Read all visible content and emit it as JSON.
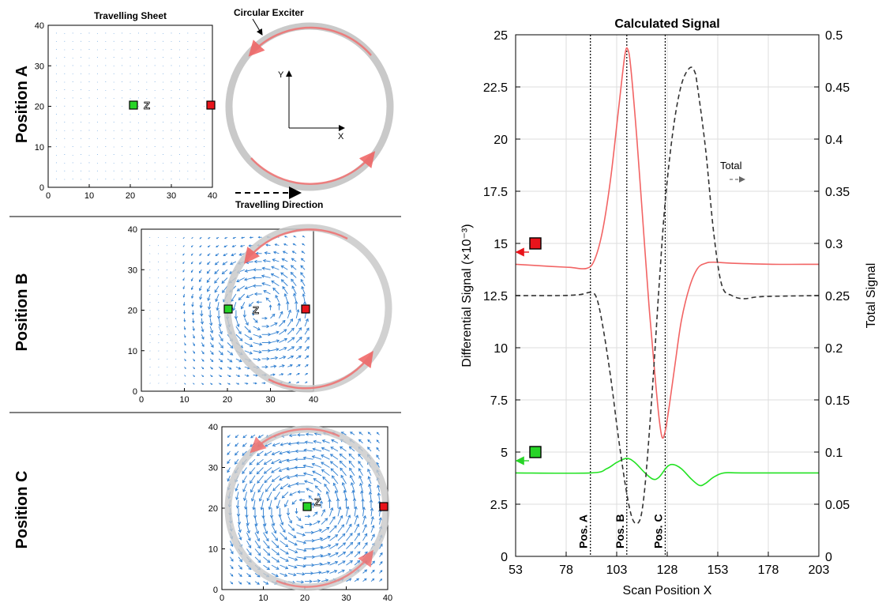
{
  "left_panels": {
    "position_a": {
      "row_label": "Position A",
      "title": "Travelling Sheet",
      "exciter_label": "Circular Exciter",
      "axis_y_label": "Y",
      "axis_x_label": "X",
      "direction_label": "Travelling Direction",
      "z_label": "Z",
      "ticks_x": [
        "0",
        "10",
        "20",
        "30",
        "40"
      ],
      "ticks_y": [
        "0",
        "10",
        "20",
        "30",
        "40"
      ]
    },
    "position_b": {
      "row_label": "Position B",
      "z_label": "Z",
      "ticks_x": [
        "0",
        "10",
        "20",
        "30",
        "40"
      ],
      "ticks_y": [
        "0",
        "10",
        "20",
        "30",
        "40"
      ]
    },
    "position_c": {
      "row_label": "Position C",
      "z_label": "Z",
      "ticks_x": [
        "0",
        "10",
        "20",
        "30",
        "40"
      ],
      "ticks_y": [
        "0",
        "10",
        "20",
        "30",
        "40"
      ]
    },
    "colors": {
      "quiver": "#2f7fd1",
      "red_sensor": "#e8141b",
      "green_sensor": "#27d427",
      "ring": "#c9c9c9",
      "ring_arrow": "#f08080"
    }
  },
  "chart_data": {
    "type": "line",
    "title": "Calculated Signal",
    "xlabel": "Scan Position X",
    "ylabel_left": "Differential Signal (×10⁻³)",
    "ylabel_right": "Total Signal",
    "xlim": [
      53,
      203
    ],
    "ylim_left": [
      0,
      25
    ],
    "ylim_right": [
      0,
      0.5
    ],
    "x_ticks": [
      "53",
      "78",
      "103",
      "128",
      "153",
      "178",
      "203"
    ],
    "y_ticks_left": [
      "0",
      "2.5",
      "5",
      "7.5",
      "10",
      "12.5",
      "15",
      "17.5",
      "20",
      "22.5",
      "25"
    ],
    "y_ticks_right": [
      "0",
      "0.05",
      "0.1",
      "0.15",
      "0.2",
      "0.25",
      "0.3",
      "0.35",
      "0.4",
      "0.45",
      "0.5"
    ],
    "grid": true,
    "annotations": {
      "total": "Total",
      "vlines": [
        {
          "label": "Pos. A",
          "x": 90
        },
        {
          "label": "Pos. B",
          "x": 108
        },
        {
          "label": "Pos. C",
          "x": 127
        }
      ]
    },
    "series": [
      {
        "color": "#f26464",
        "axis": "left",
        "style": "solid",
        "x": [
          53,
          70,
          80,
          88,
          92,
          96,
          100,
          104,
          107,
          108.5,
          110,
          113,
          116,
          119,
          122,
          124,
          125.5,
          127,
          129,
          132,
          135,
          139,
          143,
          147,
          151,
          160,
          180,
          203
        ],
        "y": [
          14.0,
          13.9,
          13.85,
          13.8,
          14.2,
          15.6,
          18.1,
          21.5,
          24.0,
          24.3,
          23.4,
          20.0,
          16.0,
          12.0,
          8.6,
          6.6,
          5.7,
          6.0,
          7.2,
          9.3,
          11.3,
          12.9,
          13.8,
          14.05,
          14.1,
          14.05,
          14.0,
          14.0
        ]
      },
      {
        "color": "#22e222",
        "axis": "left",
        "style": "solid",
        "x": [
          53,
          90,
          98,
          103,
          108,
          112,
          117,
          121,
          124,
          128,
          131,
          135,
          140,
          144,
          147,
          151,
          156,
          165,
          203
        ],
        "y": [
          4.0,
          4.0,
          4.2,
          4.5,
          4.7,
          4.5,
          4.0,
          3.7,
          3.8,
          4.3,
          4.4,
          4.2,
          3.7,
          3.4,
          3.5,
          3.8,
          4.0,
          4.0,
          4.0
        ]
      },
      {
        "color": "#333333",
        "axis": "right",
        "style": "dashed",
        "x": [
          53,
          75,
          85,
          90,
          93,
          96,
          100,
          104,
          108,
          111,
          114,
          116,
          118,
          121,
          124,
          127,
          131,
          135,
          139,
          141.5,
          143,
          147,
          151,
          155,
          160,
          166,
          175,
          203
        ],
        "y": [
          0.25,
          0.25,
          0.251,
          0.253,
          0.248,
          0.222,
          0.172,
          0.112,
          0.06,
          0.035,
          0.033,
          0.05,
          0.09,
          0.17,
          0.26,
          0.34,
          0.41,
          0.452,
          0.468,
          0.465,
          0.45,
          0.39,
          0.31,
          0.26,
          0.25,
          0.247,
          0.249,
          0.25
        ]
      }
    ],
    "markers": [
      {
        "label": "red-sensor-marker",
        "color": "#e8141b",
        "y_left": 15.0
      },
      {
        "label": "green-sensor-marker",
        "color": "#27d427",
        "y_left": 5.0
      }
    ]
  }
}
